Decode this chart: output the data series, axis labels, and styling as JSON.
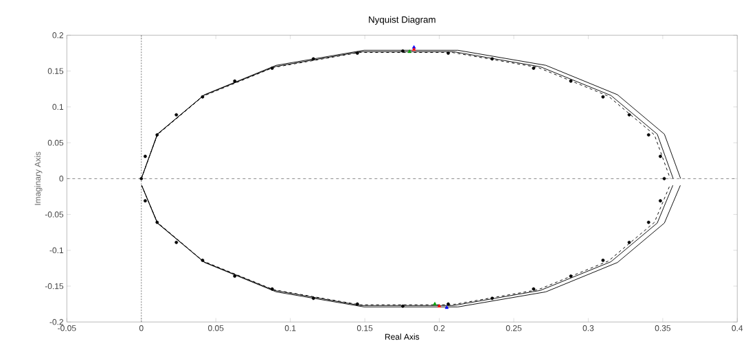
{
  "chart_data": {
    "type": "line",
    "title": "Nyquist Diagram",
    "xlabel": "Real Axis",
    "ylabel": "Imaginary Axis",
    "xlim": [
      -0.05,
      0.4
    ],
    "ylim": [
      -0.2,
      0.2
    ],
    "xticks": [
      -0.05,
      0,
      0.05,
      0.1,
      0.15,
      0.2,
      0.25,
      0.3,
      0.35,
      0.4
    ],
    "yticks": [
      -0.2,
      -0.15,
      -0.1,
      -0.05,
      0,
      0.05,
      0.1,
      0.15,
      0.2
    ],
    "ref_lines": [
      {
        "axis": "x",
        "value": 0,
        "color": "#555555",
        "line_style": "dotted"
      },
      {
        "axis": "y",
        "value": 0,
        "color": "#555555",
        "line_style": "dashed"
      }
    ],
    "series": [
      {
        "type": "line",
        "color": "#000000",
        "marker": "none",
        "line_style": "solid",
        "x": [
          0,
          0.0109,
          0.0424,
          0.0905,
          0.1495,
          0.2125,
          0.2715,
          0.3196,
          0.3511,
          0.362
        ],
        "values": [
          0,
          0.062,
          0.117,
          0.158,
          0.179,
          0.179,
          0.158,
          0.117,
          0.062,
          0
        ]
      },
      {
        "type": "line",
        "color": "#000000",
        "marker": "none",
        "line_style": "solid",
        "x": [
          0.0002,
          0.0109,
          0.0424,
          0.0905,
          0.1495,
          0.2125,
          0.2715,
          0.3196,
          0.3511,
          0.3618
        ],
        "values": [
          -0.0095,
          -0.062,
          -0.117,
          -0.158,
          -0.179,
          -0.179,
          -0.158,
          -0.117,
          -0.062,
          -0.0095
        ]
      },
      {
        "type": "line",
        "color": "#000000",
        "marker": "none",
        "line_style": "solid",
        "x": [
          0,
          0.0107,
          0.0418,
          0.0893,
          0.1474,
          0.2096,
          0.2678,
          0.3152,
          0.3463,
          0.357
        ],
        "values": [
          0,
          0.062,
          0.116,
          0.156,
          0.177,
          0.177,
          0.156,
          0.116,
          0.062,
          0
        ]
      },
      {
        "type": "line",
        "color": "#000000",
        "marker": "none",
        "line_style": "solid",
        "x": [
          0.0002,
          0.0107,
          0.0418,
          0.0893,
          0.1474,
          0.2096,
          0.2678,
          0.3152,
          0.3463,
          0.3568
        ],
        "values": [
          -0.0094,
          -0.062,
          -0.116,
          -0.156,
          -0.177,
          -0.177,
          -0.156,
          -0.116,
          -0.062,
          -0.0094
        ]
      },
      {
        "type": "line",
        "color": "#000000",
        "marker": "none",
        "line_style": "dashed",
        "x": [
          0,
          0.0107,
          0.0415,
          0.0888,
          0.1466,
          0.2084,
          0.2663,
          0.3135,
          0.3444,
          0.355
        ],
        "values": [
          0,
          0.061,
          0.115,
          0.155,
          0.176,
          0.176,
          0.155,
          0.115,
          0.061,
          0
        ]
      },
      {
        "type": "line",
        "color": "#000000",
        "marker": "none",
        "line_style": "dashed",
        "x": [
          0.0002,
          0.0107,
          0.0415,
          0.0888,
          0.1466,
          0.2084,
          0.2663,
          0.3135,
          0.3444,
          0.3548
        ],
        "values": [
          -0.0094,
          -0.061,
          -0.115,
          -0.155,
          -0.176,
          -0.176,
          -0.155,
          -0.115,
          -0.061,
          -0.0094
        ]
      },
      {
        "type": "scatter",
        "color": "#000000",
        "marker": "circle",
        "x": [
          0,
          0.0026,
          0.0106,
          0.0235,
          0.0411,
          0.0627,
          0.0878,
          0.1155,
          0.145,
          0.1755,
          0.206,
          0.2355,
          0.2633,
          0.2883,
          0.3099,
          0.3275,
          0.3405,
          0.3484,
          0.351,
          0.3484,
          0.3405,
          0.3275,
          0.3099,
          0.2883,
          0.2633,
          0.2355,
          0.206,
          0.1755,
          0.145,
          0.1155,
          0.0878,
          0.0627,
          0.0411,
          0.0235,
          0.0106,
          0.0026
        ],
        "values": [
          0,
          0.031,
          0.061,
          0.089,
          0.114,
          0.136,
          0.154,
          0.167,
          0.175,
          0.178,
          0.175,
          0.167,
          0.154,
          0.136,
          0.114,
          0.089,
          0.061,
          0.031,
          0,
          -0.031,
          -0.061,
          -0.089,
          -0.114,
          -0.136,
          -0.154,
          -0.167,
          -0.175,
          -0.178,
          -0.175,
          -0.167,
          -0.154,
          -0.136,
          -0.114,
          -0.089,
          -0.061,
          -0.031
        ]
      },
      {
        "type": "scatter",
        "color": "#0000ff",
        "marker": "triangle",
        "x": [
          0.183,
          0.205
        ],
        "values": [
          0.183,
          -0.18
        ]
      },
      {
        "type": "scatter",
        "color": "#ff0000",
        "marker": "triangle",
        "x": [
          0.183,
          0.2
        ],
        "values": [
          0.18,
          -0.178
        ]
      },
      {
        "type": "scatter",
        "color": "#00a000",
        "marker": "triangle",
        "x": [
          0.18,
          0.197
        ],
        "values": [
          0.177,
          -0.175
        ]
      }
    ]
  }
}
